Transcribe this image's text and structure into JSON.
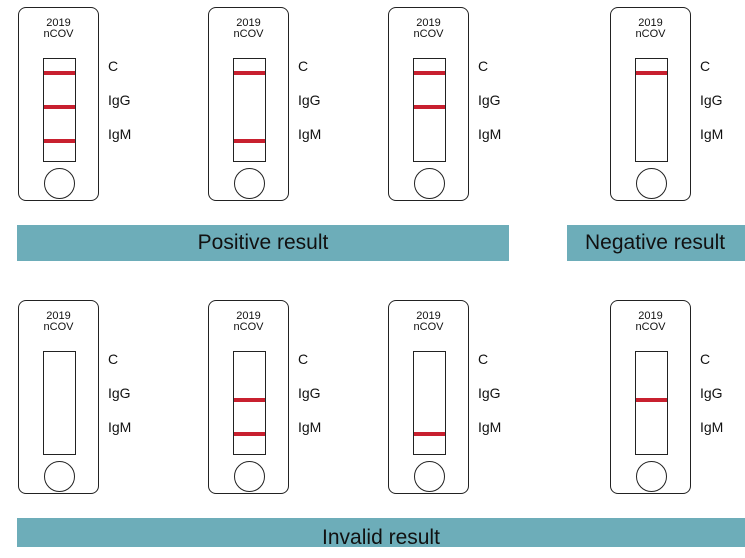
{
  "device_title": [
    "2019",
    "nCOV"
  ],
  "line_labels": {
    "c": "C",
    "igg": "IgG",
    "igm": "IgM"
  },
  "line_color": "#c8202f",
  "bar_color": "#6dadb9",
  "bands": {
    "positive": "Positive result",
    "negative": "Negative result",
    "invalid": "Invalid result"
  },
  "strips": [
    {
      "id": "positive-1",
      "lines": {
        "C": true,
        "IgG": true,
        "IgM": true
      }
    },
    {
      "id": "positive-2",
      "lines": {
        "C": true,
        "IgG": false,
        "IgM": true
      }
    },
    {
      "id": "positive-3",
      "lines": {
        "C": true,
        "IgG": true,
        "IgM": false
      }
    },
    {
      "id": "negative-1",
      "lines": {
        "C": true,
        "IgG": false,
        "IgM": false
      }
    },
    {
      "id": "invalid-1",
      "lines": {
        "C": false,
        "IgG": false,
        "IgM": false
      }
    },
    {
      "id": "invalid-2",
      "lines": {
        "C": false,
        "IgG": true,
        "IgM": true
      }
    },
    {
      "id": "invalid-3",
      "lines": {
        "C": false,
        "IgG": false,
        "IgM": true
      }
    },
    {
      "id": "invalid-4",
      "lines": {
        "C": false,
        "IgG": true,
        "IgM": false
      }
    }
  ]
}
